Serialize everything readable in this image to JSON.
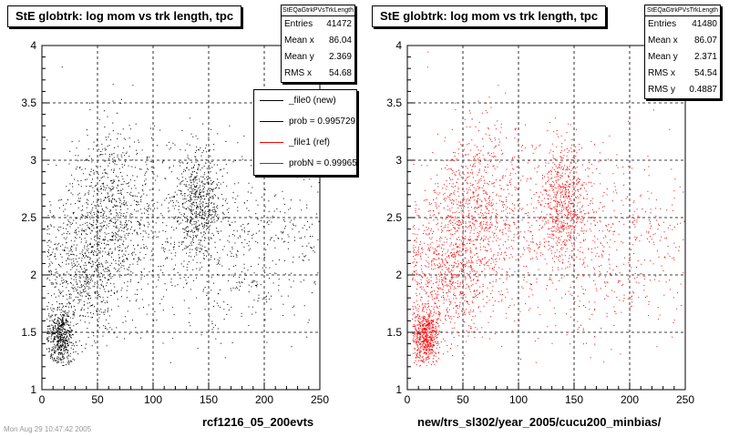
{
  "footer": {
    "stamp": "Mon Aug 29 10:47:42 2005"
  },
  "panels": [
    {
      "title": "StE globtrk: log mom vs trk length, tpc",
      "xtitle": "rcf1216_05_200evts",
      "stats": {
        "name": "StEQaGtrkPVsTrkLength",
        "rows": [
          {
            "label": "Entries",
            "value": "41472"
          },
          {
            "label": "Mean x",
            "value": "86.04"
          },
          {
            "label": "Mean y",
            "value": "2.369"
          },
          {
            "label": "RMS x",
            "value": "54.68"
          }
        ]
      },
      "legend": [
        {
          "label": "_file0 (new)",
          "color": "#000000"
        },
        {
          "label": "prob = 0.995729",
          "color": "#000000"
        },
        {
          "label": "_file1 (ref)",
          "color": "#ff0000"
        },
        {
          "label": "probN = 0.99965",
          "color": "#ff0000"
        }
      ]
    },
    {
      "title": "StE globtrk: log mom vs trk length, tpc",
      "xtitle": "new/trs_sl302/year_2005/cucu200_minbias/",
      "stats": {
        "name": "StEQaGtrkPVsTrkLength",
        "rows": [
          {
            "label": "Entries",
            "value": "41480"
          },
          {
            "label": "Mean x",
            "value": "86.07"
          },
          {
            "label": "Mean y",
            "value": "2.371"
          },
          {
            "label": "RMS x",
            "value": "54.54"
          },
          {
            "label": "RMS y",
            "value": "0.4887"
          }
        ]
      },
      "legend": []
    }
  ],
  "chart_data": [
    {
      "type": "scatter",
      "title": "StE globtrk: log mom vs trk length, tpc",
      "xlabel": "rcf1216_05_200evts",
      "ylabel": "",
      "xlim": [
        0,
        250
      ],
      "ylim": [
        1,
        4
      ],
      "xticks": [
        0,
        50,
        100,
        150,
        200,
        250
      ],
      "yticks": [
        1,
        1.5,
        2,
        2.5,
        3,
        3.5,
        4
      ],
      "grid": true,
      "color": "#000000",
      "entries": 41472,
      "clusters": [
        {
          "x": 16,
          "y": 1.45,
          "sx": 6,
          "sy": 0.12,
          "w": 0.16
        },
        {
          "x": 35,
          "y": 2.05,
          "sx": 20,
          "sy": 0.32,
          "w": 0.22
        },
        {
          "x": 65,
          "y": 2.6,
          "sx": 20,
          "sy": 0.38,
          "w": 0.22
        },
        {
          "x": 140,
          "y": 2.65,
          "sx": 10,
          "sy": 0.25,
          "w": 0.18
        },
        {
          "x": 165,
          "y": 2.25,
          "sx": 55,
          "sy": 0.4,
          "w": 0.22
        }
      ]
    },
    {
      "type": "scatter",
      "title": "StE globtrk: log mom vs trk length, tpc",
      "xlabel": "new/trs_sl302/year_2005/cucu200_minbias/",
      "ylabel": "",
      "xlim": [
        0,
        250
      ],
      "ylim": [
        1,
        4
      ],
      "xticks": [
        0,
        50,
        100,
        150,
        200,
        250
      ],
      "yticks": [
        1,
        1.5,
        2,
        2.5,
        3,
        3.5,
        4
      ],
      "grid": true,
      "color": "#ff0000",
      "entries": 41480,
      "clusters": [
        {
          "x": 16,
          "y": 1.45,
          "sx": 6,
          "sy": 0.12,
          "w": 0.16
        },
        {
          "x": 35,
          "y": 2.05,
          "sx": 20,
          "sy": 0.32,
          "w": 0.22
        },
        {
          "x": 65,
          "y": 2.6,
          "sx": 20,
          "sy": 0.38,
          "w": 0.22
        },
        {
          "x": 140,
          "y": 2.65,
          "sx": 10,
          "sy": 0.25,
          "w": 0.18
        },
        {
          "x": 165,
          "y": 2.25,
          "sx": 55,
          "sy": 0.4,
          "w": 0.22
        }
      ]
    }
  ]
}
